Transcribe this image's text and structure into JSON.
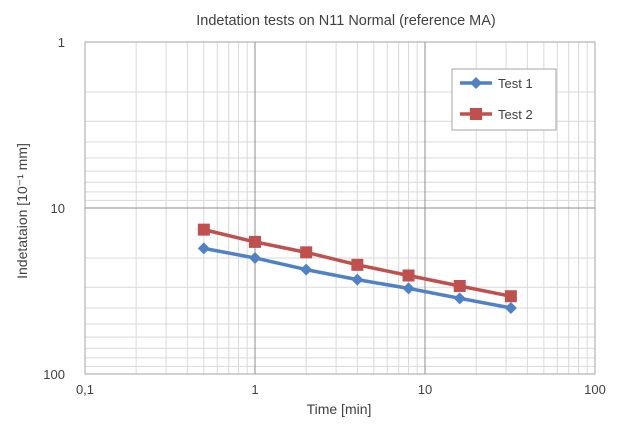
{
  "chart_data": {
    "type": "line",
    "title": "Indetation tests on N11 Normal (reference MA)",
    "xlabel": "Time [min]",
    "ylabel": "Indetataion [10⁻¹ mm]",
    "x_scale": "log",
    "y_scale": "log",
    "y_inverted": true,
    "xlim": [
      0.1,
      100
    ],
    "ylim": [
      1,
      100
    ],
    "x_tick_labels": [
      "0,1",
      "1",
      "10",
      "100"
    ],
    "y_tick_labels": [
      "1",
      "10",
      "100"
    ],
    "grid": true,
    "legend_position": "top-right",
    "series": [
      {
        "name": "Test 1",
        "color": "#4f81c7",
        "marker": "diamond",
        "x": [
          0.5,
          1,
          2,
          4,
          8,
          16,
          32
        ],
        "y": [
          17.5,
          20.0,
          23.5,
          27.0,
          30.5,
          35.0,
          40.0
        ]
      },
      {
        "name": "Test 2",
        "color": "#c0504d",
        "marker": "square",
        "x": [
          0.5,
          1,
          2,
          4,
          8,
          16,
          32
        ],
        "y": [
          13.5,
          16.0,
          18.5,
          22.0,
          25.5,
          29.5,
          34.0
        ]
      }
    ]
  }
}
